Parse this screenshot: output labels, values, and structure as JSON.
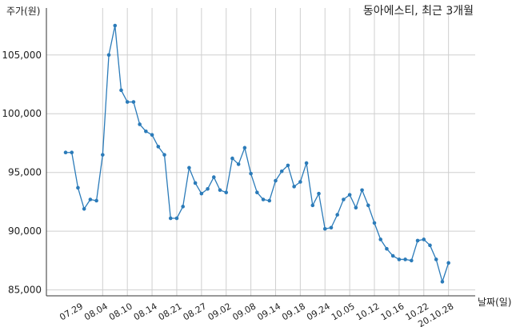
{
  "chart_data": {
    "type": "line",
    "title": "동아에스티, 최근 3개월",
    "xlabel": "날짜(일)",
    "ylabel": "주가(원)",
    "ylim": [
      84500,
      109000
    ],
    "yticks": [
      85000,
      90000,
      95000,
      100000,
      105000
    ],
    "ytick_labels": [
      "85,000",
      "90,000",
      "95,000",
      "100,000",
      "105,000"
    ],
    "grid": true,
    "x_labels": [
      "07.29",
      "08.04",
      "08.10",
      "08.14",
      "08.21",
      "08.27",
      "09.02",
      "09.08",
      "09.14",
      "09.18",
      "09.24",
      "10.05",
      "10.12",
      "10.16",
      "10.22",
      "20.10.28"
    ],
    "x_label_index": [
      2,
      6,
      10,
      14,
      18,
      22,
      26,
      30,
      34,
      38,
      42,
      46,
      50,
      54,
      58,
      62
    ],
    "x_tick_index": [
      6,
      10,
      14,
      18,
      22,
      26,
      30,
      34,
      38,
      42,
      46,
      50,
      54,
      58,
      62
    ],
    "series": [
      {
        "color": "#2b7bb9",
        "values": [
          96700,
          96700,
          93700,
          91900,
          92700,
          92600,
          96500,
          105000,
          107500,
          102000,
          101000,
          101000,
          99100,
          98500,
          98200,
          97200,
          96500,
          91100,
          91100,
          92100,
          95400,
          94100,
          93200,
          93600,
          94600,
          93500,
          93300,
          96200,
          95700,
          97100,
          94900,
          93300,
          92700,
          92600,
          94300,
          95100,
          95600,
          93800,
          94200,
          95800,
          92200,
          93200,
          90200,
          90300,
          91400,
          92700,
          93100,
          92000,
          93500,
          92200,
          90700,
          89300,
          88500,
          87900,
          87600,
          87600,
          87500,
          89200,
          89300,
          88800,
          87600,
          85700,
          87300
        ]
      }
    ]
  }
}
